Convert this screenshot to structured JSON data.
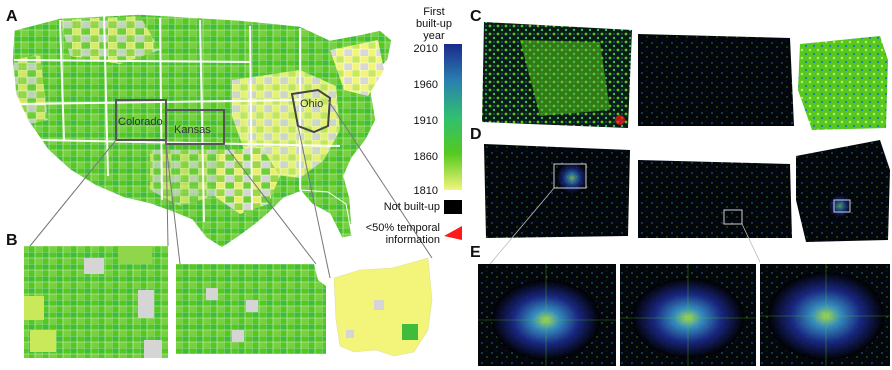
{
  "panels": {
    "A": "A",
    "B": "B",
    "C": "C",
    "D": "D",
    "E": "E"
  },
  "states": {
    "colorado": "Colorado",
    "kansas": "Kansas",
    "ohio": "Ohio"
  },
  "legend": {
    "title": "First\nbuilt-up\nyear",
    "ticks": [
      "2010",
      "1960",
      "1910",
      "1860",
      "1810"
    ],
    "not_built": "Not built-up",
    "temporal": "<50% temporal\ninformation",
    "colors": {
      "c2010": "#1b2a8c",
      "c1960": "#2a7fb0",
      "c1910": "#2fbf71",
      "c1860": "#55c91f",
      "c1810": "#f2f57a",
      "not_built": "#000000",
      "temporal": "#ff1a1a"
    }
  }
}
